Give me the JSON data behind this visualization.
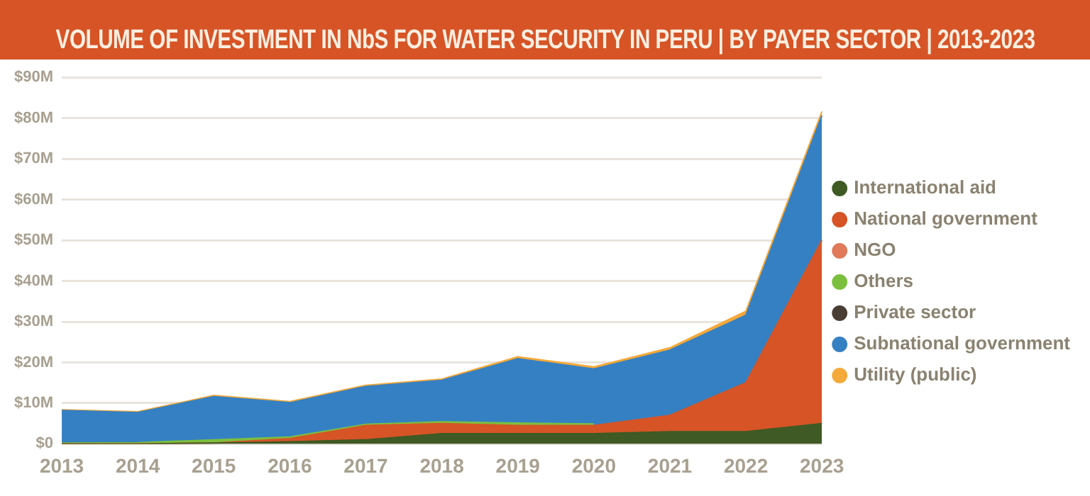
{
  "chart_data": {
    "type": "area",
    "title": "VOLUME OF INVESTMENT IN NbS FOR WATER SECURITY IN PERU | BY PAYER SECTOR | 2013-2023",
    "categories": [
      "2013",
      "2014",
      "2015",
      "2016",
      "2017",
      "2018",
      "2019",
      "2020",
      "2021",
      "2022",
      "2023"
    ],
    "stacked": true,
    "series": [
      {
        "name": "International aid",
        "color": "#3f5a24",
        "values": [
          0,
          0,
          0.2,
          0.5,
          1,
          2.5,
          2.5,
          2.5,
          3,
          3,
          5
        ]
      },
      {
        "name": "National government",
        "color": "#d65426",
        "values": [
          0,
          0,
          0,
          0.8,
          3.5,
          2.5,
          2,
          2,
          4,
          12,
          45
        ]
      },
      {
        "name": "NGO",
        "color": "#e07a5a",
        "values": [
          null,
          null,
          null,
          null,
          null,
          null,
          null,
          null,
          null,
          null,
          null
        ]
      },
      {
        "name": "Others",
        "color": "#7cbf3e",
        "values": [
          0.2,
          0.3,
          0.8,
          0.4,
          0.3,
          0.4,
          0.6,
          0.4,
          null,
          null,
          null
        ]
      },
      {
        "name": "Private sector",
        "color": "#4a3d33",
        "values": [
          null,
          null,
          null,
          null,
          null,
          null,
          null,
          null,
          null,
          null,
          null
        ]
      },
      {
        "name": "Subnational government",
        "color": "#3580c2",
        "values": [
          8.0,
          7.4,
          10.6,
          8.4,
          9.3,
          10.2,
          15.8,
          13.5,
          16,
          16.6,
          30.6
        ]
      },
      {
        "name": "Utility (public)",
        "color": "#f4a93a",
        "values": [
          0.2,
          0.2,
          0.3,
          0.3,
          0.3,
          0.3,
          0.5,
          0.5,
          0.6,
          1,
          1
        ]
      }
    ],
    "ylim": [
      0,
      90
    ],
    "yticks": [
      {
        "value": 0,
        "label": "$0"
      },
      {
        "value": 10,
        "label": "$10M"
      },
      {
        "value": 20,
        "label": "$20M"
      },
      {
        "value": 30,
        "label": "$30M"
      },
      {
        "value": 40,
        "label": "$40M"
      },
      {
        "value": 50,
        "label": "$50M"
      },
      {
        "value": 60,
        "label": "$60M"
      },
      {
        "value": 70,
        "label": "$70M"
      },
      {
        "value": 80,
        "label": "$80M"
      },
      {
        "value": 90,
        "label": "$90M"
      }
    ],
    "grid": "y",
    "legend": "right",
    "marker": "none"
  }
}
